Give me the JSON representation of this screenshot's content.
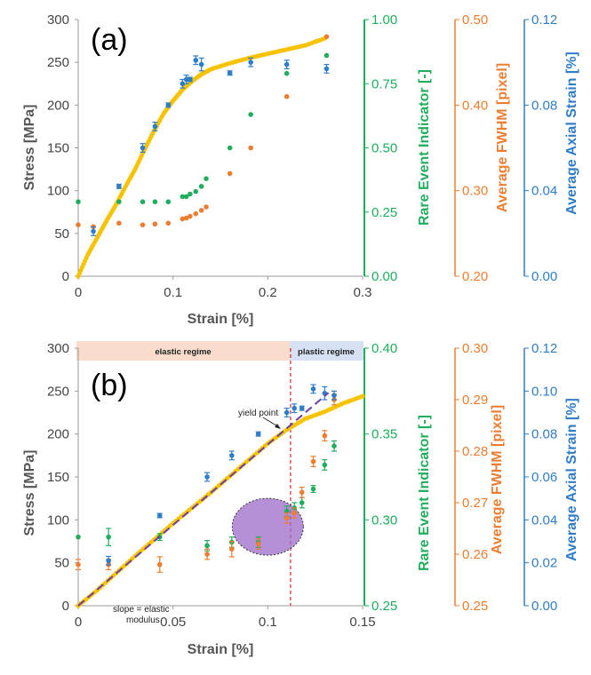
{
  "colors": {
    "stress": "#F7C300",
    "rare": "#1FAE5C",
    "fwhm": "#ED7D31",
    "strain": "#2F7DC8",
    "axisGray": "#555555",
    "elasticBand": "#F9DCCB",
    "plasticBand": "#D6E2F3",
    "ellipse": "#9C6BC8",
    "fitLine": "#6B3FA0",
    "yieldLine": "#E0202A"
  },
  "chart_data": [
    {
      "panel": "(a)",
      "type": "scatter",
      "xlabel": "Strain [%]",
      "xlim": [
        0,
        0.3
      ],
      "xticks": [
        "0",
        "0.1",
        "0.2",
        "0.3"
      ],
      "axes": [
        {
          "id": "stress",
          "label": "Stress [MPa]",
          "lim": [
            0,
            300
          ],
          "ticks": [
            "0",
            "50",
            "100",
            "150",
            "200",
            "250",
            "300"
          ],
          "color": "stress"
        },
        {
          "id": "rare",
          "label": "Rare Event Indicator [-]",
          "lim": [
            0,
            1
          ],
          "ticks": [
            "0.00",
            "0.25",
            "0.50",
            "0.75",
            "1.00"
          ],
          "color": "rare"
        },
        {
          "id": "fwhm",
          "label": "Average FWHM [pixel]",
          "lim": [
            0.2,
            0.5
          ],
          "ticks": [
            "0.20",
            "0.30",
            "0.40",
            "0.50"
          ],
          "color": "fwhm"
        },
        {
          "id": "strain",
          "label": "Average Axial Strain [%]",
          "lim": [
            0,
            0.12
          ],
          "ticks": [
            "0.00",
            "0.04",
            "0.08",
            "0.12"
          ],
          "color": "strain"
        }
      ],
      "series": [
        {
          "name": "Stress",
          "axis": "stress",
          "style": "dense",
          "x": [
            0,
            0.01,
            0.02,
            0.03,
            0.04,
            0.05,
            0.06,
            0.07,
            0.08,
            0.09,
            0.1,
            0.11,
            0.12,
            0.13,
            0.14,
            0.16,
            0.18,
            0.2,
            0.22,
            0.24,
            0.26
          ],
          "y": [
            0,
            25,
            45,
            65,
            84,
            105,
            125,
            148,
            170,
            190,
            205,
            218,
            228,
            236,
            242,
            249,
            255,
            260,
            265,
            270,
            278
          ]
        },
        {
          "name": "Rare Event Indicator",
          "axis": "rare",
          "x": [
            0,
            0.043,
            0.068,
            0.081,
            0.095,
            0.11,
            0.114,
            0.118,
            0.124,
            0.13,
            0.135,
            0.16,
            0.182,
            0.22,
            0.262
          ],
          "y": [
            0.29,
            0.29,
            0.29,
            0.29,
            0.29,
            0.31,
            0.31,
            0.32,
            0.33,
            0.35,
            0.38,
            0.5,
            0.63,
            0.79,
            0.86
          ]
        },
        {
          "name": "Average FWHM",
          "axis": "fwhm",
          "x": [
            0,
            0.016,
            0.043,
            0.068,
            0.081,
            0.095,
            0.11,
            0.114,
            0.118,
            0.124,
            0.13,
            0.135,
            0.16,
            0.182,
            0.22,
            0.262
          ],
          "y": [
            0.26,
            0.258,
            0.262,
            0.26,
            0.261,
            0.262,
            0.267,
            0.268,
            0.27,
            0.273,
            0.277,
            0.281,
            0.32,
            0.35,
            0.41,
            0.48
          ]
        },
        {
          "name": "Average Axial Strain",
          "axis": "strain",
          "x": [
            0.016,
            0.043,
            0.068,
            0.081,
            0.095,
            0.11,
            0.114,
            0.118,
            0.124,
            0.13,
            0.16,
            0.182,
            0.22,
            0.262
          ],
          "y": [
            0.021,
            0.042,
            0.06,
            0.07,
            0.08,
            0.09,
            0.092,
            0.092,
            0.101,
            0.099,
            0.095,
            0.1,
            0.099,
            0.097
          ],
          "err": [
            0.002,
            0.001,
            0.002,
            0.002,
            0.001,
            0.002,
            0.002,
            0.001,
            0.002,
            0.003,
            0.001,
            0.002,
            0.002,
            0.002
          ]
        }
      ]
    },
    {
      "panel": "(b)",
      "type": "scatter",
      "xlabel": "Strain [%]",
      "xlim": [
        0,
        0.15
      ],
      "xticks": [
        "0",
        "0.05",
        "0.1",
        "0.15"
      ],
      "regimes": [
        {
          "label": "elastic regime",
          "from": 0,
          "to": 0.112
        },
        {
          "label": "plastic regime",
          "from": 0.112,
          "to": 0.15
        }
      ],
      "yield_strain": 0.112,
      "annotations": {
        "yield": "yield point",
        "slope_line1": "slope = elastic",
        "slope_line2": "modulus"
      },
      "fit_line": {
        "x": [
          0,
          0.132
        ],
        "y": [
          0,
          248
        ]
      },
      "axes": [
        {
          "id": "stress",
          "label": "Stress [MPa]",
          "lim": [
            0,
            300
          ],
          "ticks": [
            "0",
            "50",
            "100",
            "150",
            "200",
            "250",
            "300"
          ],
          "color": "stress"
        },
        {
          "id": "rare",
          "label": "Rare Event Indicator [-]",
          "lim": [
            0.25,
            0.4
          ],
          "ticks": [
            "0.25",
            "0.30",
            "0.35",
            "0.40"
          ],
          "color": "rare"
        },
        {
          "id": "fwhm",
          "label": "Average FWHM [pixel]",
          "lim": [
            0.25,
            0.3
          ],
          "ticks": [
            "0.25",
            "0.26",
            "0.27",
            "0.28",
            "0.29",
            "0.30"
          ],
          "color": "fwhm"
        },
        {
          "id": "strain",
          "label": "Average Axial Strain [%]",
          "lim": [
            0,
            0.12
          ],
          "ticks": [
            "0.00",
            "0.02",
            "0.04",
            "0.06",
            "0.08",
            "0.10",
            "0.12"
          ],
          "color": "strain"
        }
      ],
      "series": [
        {
          "name": "Stress",
          "axis": "stress",
          "style": "dense",
          "x": [
            0,
            0.01,
            0.02,
            0.03,
            0.04,
            0.05,
            0.06,
            0.07,
            0.08,
            0.09,
            0.1,
            0.11,
            0.12,
            0.13,
            0.14,
            0.15
          ],
          "y": [
            0,
            18,
            38,
            58,
            77,
            96,
            114,
            132,
            151,
            170,
            189,
            205,
            218,
            226,
            236,
            244
          ]
        },
        {
          "name": "Rare Event Indicator",
          "axis": "rare",
          "x": [
            0,
            0.016,
            0.043,
            0.068,
            0.081,
            0.095,
            0.11,
            0.114,
            0.118,
            0.124,
            0.13,
            0.135
          ],
          "y": [
            0.29,
            0.29,
            0.29,
            0.285,
            0.287,
            0.287,
            0.305,
            0.307,
            0.31,
            0.318,
            0.332,
            0.343
          ],
          "err": [
            0,
            0.005,
            0.002,
            0.003,
            0.003,
            0.003,
            0.003,
            0.003,
            0.003,
            0.002,
            0.003,
            0.003
          ]
        },
        {
          "name": "Average FWHM",
          "axis": "fwhm",
          "x": [
            0,
            0.016,
            0.043,
            0.068,
            0.081,
            0.095,
            0.11,
            0.114,
            0.118,
            0.124,
            0.13,
            0.135
          ],
          "y": [
            0.258,
            0.258,
            0.258,
            0.26,
            0.261,
            0.262,
            0.267,
            0.268,
            0.272,
            0.278,
            0.283,
            0.29
          ],
          "err": [
            0.001,
            0.001,
            0.0015,
            0.001,
            0.0015,
            0.001,
            0.001,
            0.001,
            0.001,
            0.001,
            0.001,
            0.001
          ]
        },
        {
          "name": "Average Axial Strain",
          "axis": "strain",
          "x": [
            0.016,
            0.043,
            0.068,
            0.081,
            0.095,
            0.11,
            0.114,
            0.118,
            0.124,
            0.13,
            0.135
          ],
          "y": [
            0.021,
            0.042,
            0.06,
            0.07,
            0.08,
            0.09,
            0.092,
            0.092,
            0.101,
            0.099,
            0.098
          ],
          "err": [
            0.002,
            0.001,
            0.002,
            0.002,
            0.001,
            0.002,
            0.002,
            0.001,
            0.002,
            0.003,
            0.002
          ]
        }
      ]
    }
  ]
}
